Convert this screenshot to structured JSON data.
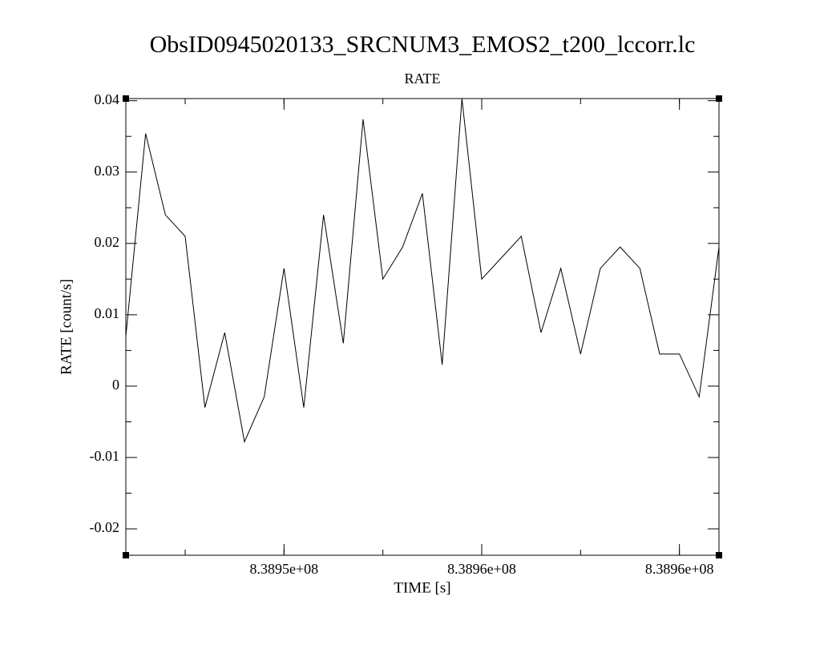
{
  "chart_data": {
    "type": "line",
    "title": "ObsID0945020133_SRCNUM3_EMOS2_t200_lccorr.lc",
    "subtitle": "RATE",
    "x_label": "TIME [s]",
    "y_label": "RATE [count/s]",
    "x": [
      839446000,
      839446500,
      839447000,
      839447500,
      839448000,
      839448500,
      839449000,
      839449500,
      839450000,
      839450500,
      839451000,
      839451500,
      839452000,
      839452500,
      839453000,
      839453500,
      839454000,
      839454500,
      839455000,
      839455500,
      839456000,
      839456500,
      839457000,
      839457500,
      839458000,
      839458500,
      839459000,
      839459500,
      839460000,
      839460500,
      839461000
    ],
    "series": [
      {
        "name": "RATE",
        "color": "#000000",
        "values": [
          0.007,
          0.0354,
          0.024,
          0.021,
          -0.003,
          0.0075,
          -0.0078,
          -0.0015,
          0.0165,
          -0.003,
          0.024,
          0.006,
          0.0374,
          0.015,
          0.0195,
          0.027,
          0.003,
          0.0403,
          0.015,
          0.018,
          0.021,
          0.0075,
          0.0165,
          0.0045,
          0.0165,
          0.0195,
          0.0165,
          0.0045,
          0.0045,
          -0.0015,
          0.0195
        ]
      }
    ],
    "xlim": [
      839446000,
      839461000
    ],
    "ylim": [
      -0.0237,
      0.0403
    ],
    "xticks": [
      {
        "value": 839450000,
        "label": "8.3895e+08"
      },
      {
        "value": 839455000,
        "label": "8.3896e+08"
      },
      {
        "value": 839460000,
        "label": "8.3896e+08"
      }
    ],
    "yticks": [
      -0.02,
      -0.01,
      0,
      0.01,
      0.02,
      0.03,
      0.04
    ],
    "grid": false
  }
}
